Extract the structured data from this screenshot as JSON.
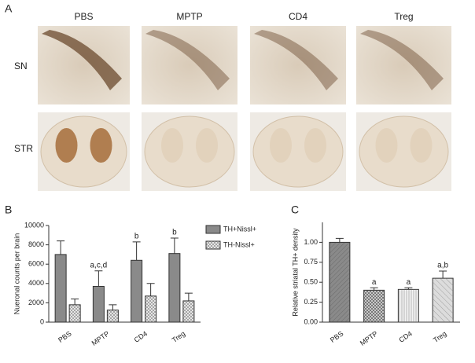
{
  "figure": {
    "panel_a": "A",
    "columns": [
      "PBS",
      "MPTP",
      "CD4",
      "Treg"
    ],
    "rows": [
      "SN",
      "STR"
    ],
    "panel_b": "B",
    "panel_c": "C"
  },
  "chart_data": [
    {
      "type": "bar",
      "ylabel": "Nueronal counts per brain",
      "categories": [
        "PBS",
        "MPTP",
        "CD4",
        "Treg"
      ],
      "series": [
        {
          "name": "TH+Nissl+",
          "color": "#8a8a8a",
          "values": [
            7000,
            3700,
            6400,
            7100
          ],
          "errors": [
            1400,
            1600,
            1900,
            1600
          ]
        },
        {
          "name": "TH-Nissl+",
          "color": "#e6e6e6",
          "values": [
            1800,
            1250,
            2700,
            2200
          ],
          "errors": [
            600,
            550,
            1300,
            800
          ]
        }
      ],
      "annotations": [
        null,
        "a,c,d",
        "b",
        "b"
      ],
      "ylim": [
        0,
        10000
      ],
      "yticks": [
        0,
        2000,
        4000,
        6000,
        8000,
        10000
      ],
      "legend": "right"
    },
    {
      "type": "bar",
      "ylabel": "Relative striatal TH+ density",
      "categories": [
        "PBS",
        "MPTP",
        "CD4",
        "Treg"
      ],
      "values": [
        1.0,
        0.4,
        0.41,
        0.55
      ],
      "errors": [
        0.05,
        0.03,
        0.02,
        0.09
      ],
      "colors": [
        "#8a8a8a",
        "#c8c8c8",
        "#f2f2f2",
        "#dcdcdc"
      ],
      "annotations": [
        null,
        "a",
        "a",
        "a,b"
      ],
      "ylim": [
        0,
        1.25
      ],
      "yticks": [
        {
          "value": 0,
          "label": "0.00"
        },
        {
          "value": 0.25,
          "label": "0.25"
        },
        {
          "value": 0.5,
          "label": "0.50"
        },
        {
          "value": 0.75,
          "label": "0.75"
        },
        {
          "value": 1,
          "label": "1.00"
        }
      ]
    }
  ]
}
